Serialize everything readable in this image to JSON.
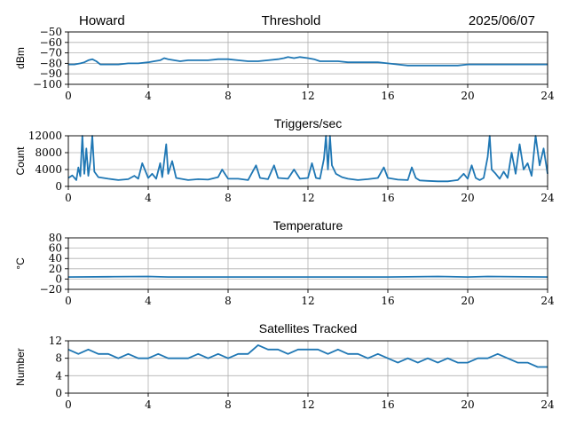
{
  "header": {
    "left": "Howard",
    "center": "Threshold",
    "right": "2025/06/07"
  },
  "colors": {
    "line": "#1f77b4",
    "grid": "#b0b0b0",
    "axis": "#000000"
  },
  "chart_data": [
    {
      "type": "line",
      "title": "",
      "xlabel": "",
      "ylabel": "dBm",
      "xlim": [
        0,
        24
      ],
      "ylim": [
        -100,
        -50
      ],
      "xticks": [
        "0",
        "4",
        "8",
        "12",
        "16",
        "20",
        "24"
      ],
      "yticks": [
        "−50",
        "−60",
        "−70",
        "−80",
        "−90",
        "−100"
      ],
      "grid": true,
      "series": [
        {
          "values": [
            [
              0,
              -81
            ],
            [
              0.3,
              -81
            ],
            [
              0.6,
              -80
            ],
            [
              0.8,
              -79
            ],
            [
              1.0,
              -77
            ],
            [
              1.2,
              -76
            ],
            [
              1.4,
              -78
            ],
            [
              1.6,
              -81
            ],
            [
              2.0,
              -81
            ],
            [
              2.5,
              -81
            ],
            [
              3.0,
              -80
            ],
            [
              3.5,
              -80
            ],
            [
              4.0,
              -79
            ],
            [
              4.3,
              -78
            ],
            [
              4.6,
              -77
            ],
            [
              4.8,
              -75
            ],
            [
              5.0,
              -76
            ],
            [
              5.3,
              -77
            ],
            [
              5.6,
              -78
            ],
            [
              6.0,
              -77
            ],
            [
              6.5,
              -77
            ],
            [
              7.0,
              -77
            ],
            [
              7.5,
              -76
            ],
            [
              8.0,
              -76
            ],
            [
              8.5,
              -77
            ],
            [
              9.0,
              -78
            ],
            [
              9.5,
              -78
            ],
            [
              10.0,
              -77
            ],
            [
              10.5,
              -76
            ],
            [
              10.8,
              -75
            ],
            [
              11.0,
              -74
            ],
            [
              11.3,
              -75
            ],
            [
              11.6,
              -74
            ],
            [
              12.0,
              -75
            ],
            [
              12.3,
              -76
            ],
            [
              12.6,
              -78
            ],
            [
              13.0,
              -78
            ],
            [
              13.5,
              -78
            ],
            [
              14.0,
              -79
            ],
            [
              14.5,
              -79
            ],
            [
              15.0,
              -79
            ],
            [
              15.5,
              -79
            ],
            [
              16.0,
              -80
            ],
            [
              16.5,
              -81
            ],
            [
              17.0,
              -82
            ],
            [
              18.0,
              -82
            ],
            [
              19.0,
              -82
            ],
            [
              19.5,
              -82
            ],
            [
              20.0,
              -81
            ],
            [
              21.0,
              -81
            ],
            [
              22.0,
              -81
            ],
            [
              23.0,
              -81
            ],
            [
              24.0,
              -81
            ]
          ]
        }
      ]
    },
    {
      "type": "line",
      "title": "Triggers/sec",
      "xlabel": "",
      "ylabel": "Count",
      "xlim": [
        0,
        24
      ],
      "ylim": [
        0,
        12000
      ],
      "xticks": [
        "0",
        "4",
        "8",
        "12",
        "16",
        "20",
        "24"
      ],
      "yticks": [
        "12000",
        "8000",
        "4000",
        "0"
      ],
      "grid": true,
      "series": [
        {
          "values": [
            [
              0,
              2000
            ],
            [
              0.2,
              2600
            ],
            [
              0.4,
              1500
            ],
            [
              0.5,
              4500
            ],
            [
              0.6,
              2400
            ],
            [
              0.7,
              12000
            ],
            [
              0.8,
              3000
            ],
            [
              0.9,
              9000
            ],
            [
              1.0,
              2500
            ],
            [
              1.1,
              6000
            ],
            [
              1.2,
              12000
            ],
            [
              1.3,
              3500
            ],
            [
              1.5,
              2200
            ],
            [
              2.0,
              1800
            ],
            [
              2.5,
              1500
            ],
            [
              3.0,
              1700
            ],
            [
              3.3,
              2500
            ],
            [
              3.5,
              1800
            ],
            [
              3.7,
              5500
            ],
            [
              4.0,
              2000
            ],
            [
              4.2,
              3000
            ],
            [
              4.4,
              1800
            ],
            [
              4.6,
              5500
            ],
            [
              4.7,
              2200
            ],
            [
              4.9,
              10000
            ],
            [
              5.0,
              3000
            ],
            [
              5.2,
              6000
            ],
            [
              5.4,
              2000
            ],
            [
              6.0,
              1500
            ],
            [
              6.5,
              1700
            ],
            [
              7.0,
              1600
            ],
            [
              7.5,
              2200
            ],
            [
              7.7,
              4000
            ],
            [
              8.0,
              1800
            ],
            [
              8.5,
              1800
            ],
            [
              9.0,
              1500
            ],
            [
              9.4,
              5000
            ],
            [
              9.6,
              2000
            ],
            [
              10.0,
              1700
            ],
            [
              10.3,
              5000
            ],
            [
              10.5,
              2000
            ],
            [
              11.0,
              1800
            ],
            [
              11.3,
              4000
            ],
            [
              11.6,
              1800
            ],
            [
              12.0,
              2000
            ],
            [
              12.2,
              5500
            ],
            [
              12.4,
              2000
            ],
            [
              12.6,
              1800
            ],
            [
              12.8,
              6500
            ],
            [
              12.9,
              12000
            ],
            [
              13.0,
              4000
            ],
            [
              13.1,
              12000
            ],
            [
              13.2,
              5000
            ],
            [
              13.4,
              3000
            ],
            [
              13.7,
              2200
            ],
            [
              14.0,
              1800
            ],
            [
              14.5,
              1500
            ],
            [
              15.0,
              1700
            ],
            [
              15.5,
              2000
            ],
            [
              15.8,
              4500
            ],
            [
              16.0,
              2000
            ],
            [
              16.5,
              1600
            ],
            [
              17.0,
              1500
            ],
            [
              17.2,
              4500
            ],
            [
              17.4,
              2000
            ],
            [
              17.6,
              1400
            ],
            [
              18.0,
              1300
            ],
            [
              18.5,
              1200
            ],
            [
              19.0,
              1200
            ],
            [
              19.5,
              1500
            ],
            [
              19.8,
              3000
            ],
            [
              20.0,
              1800
            ],
            [
              20.2,
              5000
            ],
            [
              20.4,
              2000
            ],
            [
              20.6,
              1500
            ],
            [
              20.8,
              2000
            ],
            [
              21.0,
              7000
            ],
            [
              21.1,
              12000
            ],
            [
              21.2,
              4000
            ],
            [
              21.4,
              3000
            ],
            [
              21.6,
              1800
            ],
            [
              21.8,
              3500
            ],
            [
              22.0,
              2000
            ],
            [
              22.2,
              8000
            ],
            [
              22.4,
              3000
            ],
            [
              22.6,
              10000
            ],
            [
              22.8,
              4000
            ],
            [
              23.0,
              5500
            ],
            [
              23.2,
              2500
            ],
            [
              23.4,
              12000
            ],
            [
              23.6,
              5000
            ],
            [
              23.8,
              9000
            ],
            [
              24.0,
              3000
            ]
          ]
        }
      ]
    },
    {
      "type": "line",
      "title": "Temperature",
      "xlabel": "",
      "ylabel": "°C",
      "xlim": [
        0,
        24
      ],
      "ylim": [
        -20,
        80
      ],
      "xticks": [
        "0",
        "4",
        "8",
        "12",
        "16",
        "20",
        "24"
      ],
      "yticks": [
        "80",
        "60",
        "40",
        "20",
        "0",
        "−20"
      ],
      "grid": true,
      "series": [
        {
          "values": [
            [
              0,
              4
            ],
            [
              2,
              4.5
            ],
            [
              4,
              5
            ],
            [
              5,
              4
            ],
            [
              8,
              4
            ],
            [
              12,
              4
            ],
            [
              16,
              4
            ],
            [
              18.5,
              5
            ],
            [
              20,
              4
            ],
            [
              21,
              5
            ],
            [
              24,
              4
            ]
          ]
        }
      ]
    },
    {
      "type": "line",
      "title": "Satellites Tracked",
      "xlabel": "",
      "ylabel": "Number",
      "xlim": [
        0,
        24
      ],
      "ylim": [
        0,
        12
      ],
      "xticks": [
        "0",
        "4",
        "8",
        "12",
        "16",
        "20",
        "24"
      ],
      "yticks": [
        "12",
        "8",
        "4",
        "0"
      ],
      "grid": true,
      "series": [
        {
          "values": [
            [
              0,
              10
            ],
            [
              0.5,
              9
            ],
            [
              1.0,
              10
            ],
            [
              1.5,
              9
            ],
            [
              2.0,
              9
            ],
            [
              2.5,
              8
            ],
            [
              3.0,
              9
            ],
            [
              3.5,
              8
            ],
            [
              4.0,
              8
            ],
            [
              4.5,
              9
            ],
            [
              5.0,
              8
            ],
            [
              6.0,
              8
            ],
            [
              6.5,
              9
            ],
            [
              7.0,
              8
            ],
            [
              7.5,
              9
            ],
            [
              8.0,
              8
            ],
            [
              8.5,
              9
            ],
            [
              9.0,
              9
            ],
            [
              9.5,
              11
            ],
            [
              10.0,
              10
            ],
            [
              10.5,
              10
            ],
            [
              11.0,
              9
            ],
            [
              11.5,
              10
            ],
            [
              12.0,
              10
            ],
            [
              12.5,
              10
            ],
            [
              13.0,
              9
            ],
            [
              13.5,
              10
            ],
            [
              14.0,
              9
            ],
            [
              14.5,
              9
            ],
            [
              15.0,
              8
            ],
            [
              15.5,
              9
            ],
            [
              16.0,
              8
            ],
            [
              16.5,
              7
            ],
            [
              17.0,
              8
            ],
            [
              17.5,
              7
            ],
            [
              18.0,
              8
            ],
            [
              18.5,
              7
            ],
            [
              19.0,
              8
            ],
            [
              19.5,
              7
            ],
            [
              20.0,
              7
            ],
            [
              20.5,
              8
            ],
            [
              21.0,
              8
            ],
            [
              21.5,
              9
            ],
            [
              22.0,
              8
            ],
            [
              22.5,
              7
            ],
            [
              23.0,
              7
            ],
            [
              23.5,
              6
            ],
            [
              24.0,
              6
            ]
          ]
        }
      ]
    }
  ]
}
